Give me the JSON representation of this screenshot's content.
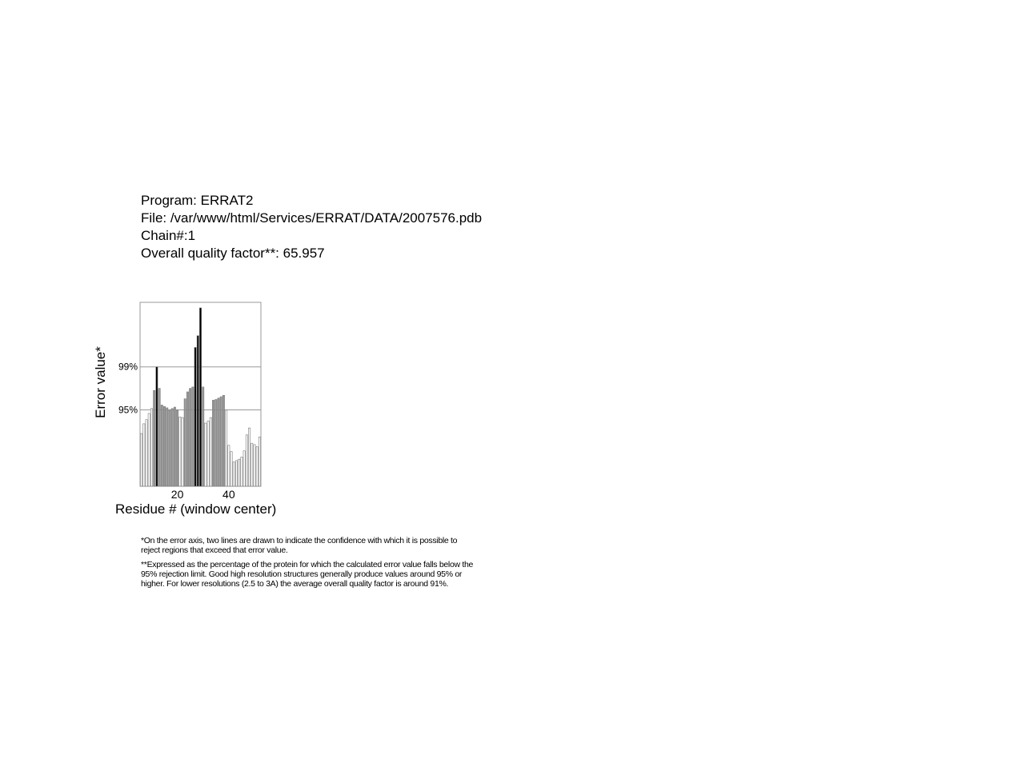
{
  "header": {
    "program": "Program: ERRAT2",
    "file": "File: /var/www/html/Services/ERRAT/DATA/2007576.pdb",
    "chain": "Chain#:1",
    "quality": "Overall quality factor**: 65.957"
  },
  "chart_data": {
    "type": "bar",
    "xlabel": "Residue # (window center)",
    "ylabel": "Error value*",
    "x_ticks": [
      20,
      40
    ],
    "thresholds": [
      {
        "label": "95%",
        "value": 11.0
      },
      {
        "label": "99%",
        "value": 17.2
      }
    ],
    "x": [
      6,
      7,
      8,
      9,
      10,
      11,
      12,
      13,
      14,
      15,
      16,
      17,
      18,
      19,
      20,
      21,
      22,
      23,
      24,
      25,
      26,
      27,
      28,
      29,
      30,
      31,
      32,
      33,
      34,
      35,
      36,
      37,
      38,
      39,
      40,
      41,
      42,
      43,
      44,
      45,
      46,
      47,
      48,
      49,
      50,
      51,
      52
    ],
    "values": [
      7.6,
      9.0,
      9.6,
      10.5,
      11.2,
      13.8,
      17.2,
      14.1,
      11.7,
      11.5,
      11.3,
      11.0,
      11.2,
      11.4,
      11.0,
      10.0,
      9.9,
      12.6,
      13.6,
      14.1,
      14.3,
      20.0,
      21.7,
      25.7,
      14.3,
      9.1,
      9.4,
      9.9,
      12.4,
      12.5,
      12.7,
      12.9,
      13.1,
      11.0,
      5.9,
      5.0,
      3.5,
      3.7,
      3.9,
      4.2,
      5.1,
      7.4,
      8.4,
      6.2,
      6.0,
      5.7,
      7.1
    ],
    "colors": [
      "#ffffff",
      "#ffffff",
      "#ffffff",
      "#ffffff",
      "#ffffff",
      "#999999",
      "#000000",
      "#999999",
      "#999999",
      "#999999",
      "#999999",
      "#999999",
      "#999999",
      "#999999",
      "#999999",
      "#ffffff",
      "#ffffff",
      "#999999",
      "#999999",
      "#999999",
      "#999999",
      "#000000",
      "#000000",
      "#000000",
      "#999999",
      "#ffffff",
      "#ffffff",
      "#ffffff",
      "#999999",
      "#999999",
      "#999999",
      "#999999",
      "#999999",
      "#ffffff",
      "#ffffff",
      "#ffffff",
      "#ffffff",
      "#ffffff",
      "#ffffff",
      "#ffffff",
      "#ffffff",
      "#ffffff",
      "#ffffff",
      "#ffffff",
      "#ffffff",
      "#ffffff",
      "#ffffff"
    ]
  },
  "notes": {
    "note1": "*On the error axis, two lines are drawn to indicate the confidence with which it is possible to reject regions that exceed that error value.",
    "note2": "**Expressed as the percentage of the protein for which the calculated error value falls below the 95% rejection limit. Good high resolution structures generally produce values around 95% or higher. For lower resolutions (2.5 to 3A) the average overall quality factor is around 91%."
  }
}
